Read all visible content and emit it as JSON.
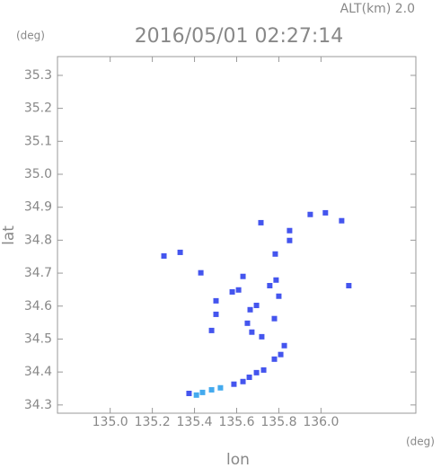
{
  "chart_data": {
    "type": "scatter",
    "title": "2016/05/01 02:27:14",
    "annotation": "ALT(km) 2.0",
    "y_unit": "(deg)",
    "x_unit": "(deg)",
    "x_label": "lon",
    "y_label": "lat",
    "xlim": [
      134.75,
      136.45
    ],
    "ylim": [
      34.275,
      35.357
    ],
    "xticks": [
      {
        "value": 135,
        "label": "135.0"
      },
      135.2,
      135.4,
      135.6,
      135.8,
      {
        "value": 136,
        "label": "136.0"
      }
    ],
    "yticks": [
      34.3,
      34.4,
      34.5,
      34.6,
      34.7,
      34.8,
      34.9,
      {
        "value": 35,
        "label": "35.0"
      },
      35.1,
      35.2,
      35.3
    ],
    "series": [
      {
        "color": "#4455ee",
        "x": [
          135.255,
          135.332,
          135.43,
          135.715,
          135.949,
          136.021,
          136.098,
          135.851,
          135.851,
          135.783,
          136.132,
          135.63,
          135.579,
          135.609,
          135.502,
          135.757,
          135.787,
          135.8,
          135.502,
          135.664,
          135.694,
          135.651,
          135.672,
          135.779,
          135.719,
          135.481,
          135.826,
          135.809,
          135.779,
          135.728,
          135.694,
          135.66,
          135.63,
          135.587,
          135.374
        ],
        "values": [
          34.752,
          34.763,
          34.701,
          34.853,
          34.878,
          34.883,
          34.859,
          34.799,
          34.829,
          34.758,
          34.662,
          34.69,
          34.643,
          34.649,
          34.616,
          34.662,
          34.679,
          34.63,
          34.575,
          34.589,
          34.602,
          34.548,
          34.521,
          34.562,
          34.507,
          34.526,
          34.48,
          34.453,
          34.439,
          34.406,
          34.398,
          34.384,
          34.371,
          34.363,
          34.335
        ]
      },
      {
        "color": "#44aaee",
        "x": [
          135.523,
          135.481,
          135.438,
          135.409
        ],
        "values": [
          34.352,
          34.346,
          34.338,
          34.33
        ]
      }
    ]
  }
}
